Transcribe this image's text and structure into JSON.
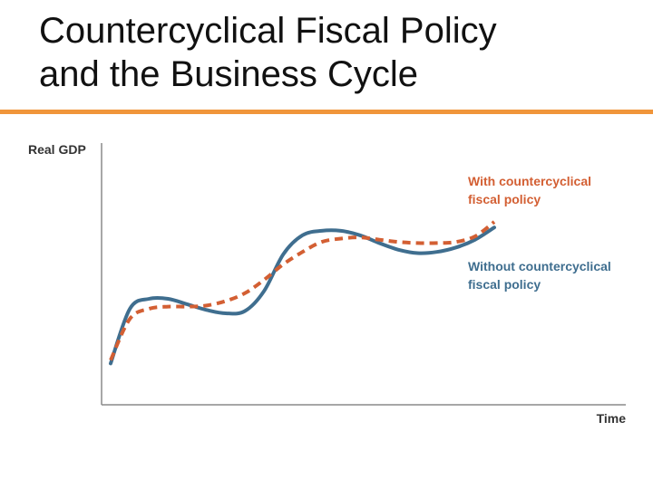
{
  "slide": {
    "title_line1": "Countercyclical Fiscal Policy",
    "title_line2": "and the Business Cycle",
    "accent_color": "#f0953a"
  },
  "chart_data": {
    "type": "line",
    "title": "",
    "xlabel": "Time",
    "ylabel": "Real GDP",
    "ticks_shown": false,
    "grid": false,
    "legend": "labels placed next to line ends, upper right",
    "x": [
      0,
      1,
      2,
      3,
      4,
      5,
      6,
      7,
      8,
      9,
      10,
      11,
      12,
      13,
      14,
      15,
      16,
      17,
      18,
      19,
      20
    ],
    "series": [
      {
        "name": "With countercyclical fiscal policy",
        "label_lines": [
          "With countercyclical",
          "fiscal policy"
        ],
        "color": "#d35f33",
        "dash": true,
        "values": [
          1.0,
          4.7,
          5.6,
          5.8,
          5.8,
          5.9,
          6.3,
          7.0,
          8.2,
          9.6,
          10.7,
          11.6,
          11.9,
          12.0,
          11.8,
          11.6,
          11.5,
          11.5,
          11.6,
          12.1,
          13.4
        ]
      },
      {
        "name": "Without countercyclical fiscal policy",
        "label_lines": [
          "Without countercyclical",
          "fiscal policy"
        ],
        "color": "#3f6e8f",
        "dash": false,
        "values": [
          0.7,
          5.6,
          6.5,
          6.5,
          6.0,
          5.5,
          5.2,
          5.4,
          7.2,
          10.5,
          12.2,
          12.6,
          12.6,
          12.2,
          11.5,
          10.9,
          10.6,
          10.7,
          11.1,
          11.8,
          12.9
        ]
      }
    ]
  }
}
